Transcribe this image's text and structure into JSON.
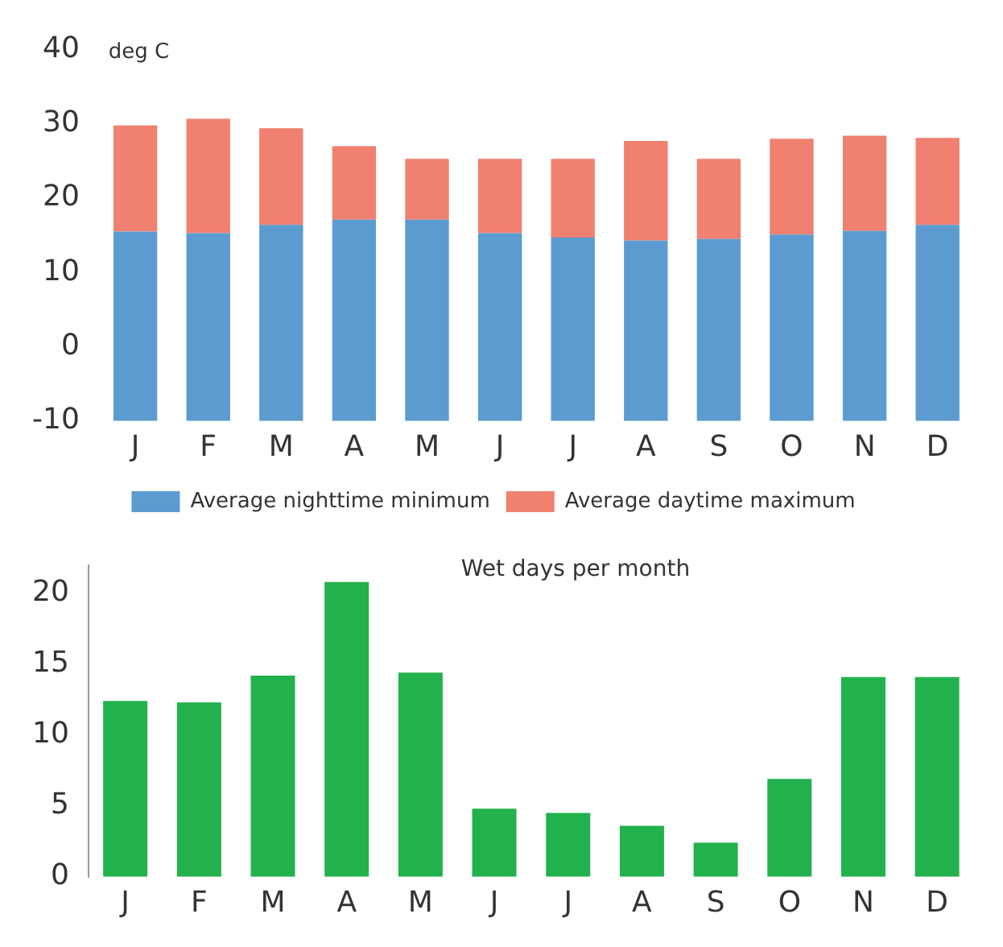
{
  "chart_data": [
    {
      "type": "bar",
      "ylabel": "deg C",
      "categories": [
        "J",
        "F",
        "M",
        "A",
        "M",
        "J",
        "J",
        "A",
        "S",
        "O",
        "N",
        "D"
      ],
      "series": [
        {
          "name": "Average nighttime minimum",
          "color": "#5b9bd0",
          "base": [
            -10,
            -10,
            -10,
            -10,
            -10,
            -10,
            -10,
            -10,
            -10,
            -10,
            -10,
            -10
          ],
          "values": [
            25.5,
            25.3,
            26.4,
            27.1,
            27.1,
            25.3,
            24.7,
            24.3,
            24.5,
            25.1,
            25.6,
            26.4
          ]
        },
        {
          "name": "Average daytime maximum",
          "color": "#f08070",
          "base": [
            15.5,
            15.3,
            16.4,
            17.1,
            17.1,
            15.3,
            14.7,
            14.3,
            14.5,
            15.1,
            15.6,
            16.4
          ],
          "values": [
            14.3,
            15.4,
            13.0,
            9.9,
            8.2,
            10.0,
            10.6,
            13.4,
            10.8,
            12.9,
            12.8,
            11.7
          ]
        }
      ],
      "ylim": [
        -10,
        40
      ],
      "yticks": [
        -10,
        0,
        10,
        20,
        30,
        40
      ],
      "grid": false,
      "legend": "bottom"
    },
    {
      "type": "bar",
      "title": "Wet days per month",
      "categories": [
        "J",
        "F",
        "M",
        "A",
        "M",
        "J",
        "J",
        "A",
        "S",
        "O",
        "N",
        "D"
      ],
      "series": [
        {
          "color": "#22b14c",
          "values": [
            12.4,
            12.3,
            14.2,
            20.8,
            14.4,
            4.8,
            4.5,
            3.6,
            2.4,
            6.9,
            14.1,
            14.1
          ]
        }
      ],
      "ylim": [
        0,
        22
      ],
      "yticks": [
        0,
        5,
        10,
        15,
        20
      ],
      "grid": false,
      "legend": false
    }
  ]
}
